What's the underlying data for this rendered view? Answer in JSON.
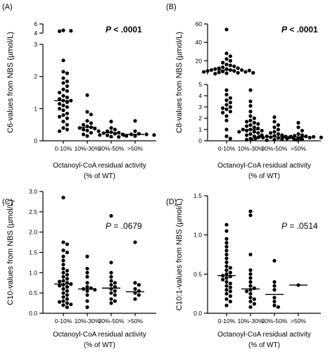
{
  "chart_data": [
    {
      "type": "scatter",
      "panel_label": "(A)",
      "ylabel": "C6-values from NBS (µmol/L)",
      "xlabel_lines": [
        "Octanoyl-CoA residual activity",
        "(% of WT)"
      ],
      "categories": [
        "0-10%",
        "10%-30%",
        "30%-50%",
        ">50%"
      ],
      "p_value": {
        "prefix": "P",
        "text": " < .0001",
        "bold": true
      },
      "y_segments": [
        {
          "range": [
            0,
            3
          ],
          "ticks": [
            0,
            1,
            2,
            3
          ],
          "tick_labels": [
            "0",
            "1",
            "2",
            "3"
          ]
        },
        {
          "range": [
            4,
            6
          ],
          "ticks": [
            4,
            6
          ],
          "tick_labels": [
            "4",
            "6"
          ]
        }
      ],
      "medians": [
        1.25,
        0.42,
        0.25,
        0.2
      ],
      "series": [
        {
          "category": "0-10%",
          "values": [
            4.6,
            4.5,
            4.4,
            2.5,
            2.15,
            2.1,
            1.95,
            1.85,
            1.8,
            1.7,
            1.6,
            1.55,
            1.5,
            1.4,
            1.35,
            1.3,
            1.25,
            1.25,
            1.2,
            1.15,
            1.1,
            1.05,
            1.0,
            0.95,
            0.85,
            0.8,
            0.75,
            0.7,
            0.6,
            0.5,
            0.4,
            0.35,
            0.3
          ]
        },
        {
          "category": "10%-30%",
          "values": [
            1.42,
            0.9,
            0.82,
            0.62,
            0.55,
            0.5,
            0.45,
            0.42,
            0.4,
            0.38,
            0.35,
            0.32,
            0.3,
            0.25,
            0.2,
            0.15
          ]
        },
        {
          "category": "30%-50%",
          "values": [
            0.6,
            0.4,
            0.35,
            0.3,
            0.27,
            0.25,
            0.24,
            0.22,
            0.2,
            0.18,
            0.17,
            0.15,
            0.13,
            0.12
          ]
        },
        {
          "category": ">50%",
          "values": [
            0.62,
            0.3,
            0.22,
            0.2,
            0.2,
            0.18,
            0.18,
            0.15
          ]
        }
      ]
    },
    {
      "type": "scatter",
      "panel_label": "(B)",
      "ylabel": "C8-values from NBS (µmol/L)",
      "xlabel_lines": [
        "Octanoyl-CoA residual activity",
        "(% of WT)"
      ],
      "categories": [
        "0-10%",
        "10%-30%",
        "30%-50%",
        ">50%"
      ],
      "p_value": {
        "prefix": "P",
        "text": " < .0001",
        "bold": true
      },
      "y_segments": [
        {
          "range": [
            0,
            5
          ],
          "ticks": [
            0,
            1,
            2,
            3,
            4,
            5
          ],
          "tick_labels": [
            "0",
            "1",
            "2",
            "3",
            "4",
            "5"
          ]
        },
        {
          "range": [
            5,
            60
          ],
          "ticks": [
            20,
            40,
            60
          ],
          "tick_labels": [
            "20",
            "40",
            "60"
          ]
        }
      ],
      "medians": [
        10,
        1.0,
        0.35,
        0.35
      ],
      "series": [
        {
          "category": "0-10%",
          "values": [
            54,
            28,
            25,
            22,
            20,
            18,
            16,
            15,
            14,
            13,
            12,
            12,
            11,
            11,
            10,
            10,
            10,
            9.5,
            9,
            9,
            8.5,
            8,
            8,
            7.5,
            7,
            7,
            6.5,
            6,
            4.5,
            4.1,
            3.8,
            3.6,
            3.4,
            3.2,
            3.0,
            2.9,
            2.8,
            2.6,
            2.5,
            2.2,
            1.8,
            1.0,
            0.4,
            0.2
          ]
        },
        {
          "category": "10%-30%",
          "values": [
            4.5,
            3.5,
            3.1,
            2.6,
            2.2,
            2.0,
            1.8,
            1.7,
            1.6,
            1.5,
            1.4,
            1.3,
            1.2,
            1.1,
            1.0,
            1.0,
            0.9,
            0.9,
            0.8,
            0.8,
            0.7,
            0.6,
            0.5,
            0.5,
            0.4,
            0.3,
            0.2,
            0.1
          ]
        },
        {
          "category": "30%-50%",
          "values": [
            2.1,
            1.7,
            1.4,
            1.2,
            1.0,
            0.8,
            0.7,
            0.6,
            0.5,
            0.45,
            0.4,
            0.38,
            0.35,
            0.32,
            0.3,
            0.28,
            0.25,
            0.22,
            0.2,
            0.18,
            0.15,
            0.12,
            0.1,
            0.08,
            0.05
          ]
        },
        {
          "category": ">50%",
          "values": [
            1.6,
            1.2,
            0.9,
            0.6,
            0.5,
            0.45,
            0.4,
            0.38,
            0.35,
            0.33,
            0.3,
            0.28,
            0.25,
            0.2,
            0.15,
            0.1
          ]
        }
      ]
    },
    {
      "type": "scatter",
      "panel_label": "(C)",
      "ylabel": "C10-values from NBS (µmol/L)",
      "xlabel_lines": [
        "Octanoyl-CoA residual activity",
        "(% of WT)"
      ],
      "categories": [
        "0-10%",
        "10%-30%",
        "30%-50%",
        ">50%"
      ],
      "p_value": {
        "prefix": "P",
        "text": " = .0679",
        "bold": false
      },
      "y_segments": [
        {
          "range": [
            0,
            3
          ],
          "ticks": [
            0,
            0.5,
            1.0,
            1.5,
            2.0,
            2.5,
            3.0
          ],
          "tick_labels": [
            "0.0",
            "0.5",
            "1.0",
            "1.5",
            "2.0",
            "2.5",
            "3.0"
          ]
        }
      ],
      "medians": [
        0.72,
        0.6,
        0.62,
        0.53
      ],
      "series": [
        {
          "category": "0-10%",
          "values": [
            2.85,
            1.75,
            1.7,
            1.55,
            1.5,
            1.4,
            1.3,
            1.2,
            1.1,
            1.05,
            1.0,
            0.95,
            0.9,
            0.85,
            0.8,
            0.78,
            0.75,
            0.72,
            0.7,
            0.68,
            0.65,
            0.6,
            0.55,
            0.5,
            0.45,
            0.4,
            0.35,
            0.3,
            0.28,
            0.25,
            0.22,
            0.2,
            0.15
          ]
        },
        {
          "category": "10%-30%",
          "values": [
            1.4,
            1.1,
            1.0,
            0.9,
            0.75,
            0.65,
            0.62,
            0.6,
            0.58,
            0.55,
            0.45,
            0.3,
            0.15
          ]
        },
        {
          "category": "30%-50%",
          "values": [
            2.4,
            1.25,
            1.0,
            0.9,
            0.8,
            0.75,
            0.7,
            0.65,
            0.6,
            0.55,
            0.5,
            0.45,
            0.35,
            0.3,
            0.25
          ]
        },
        {
          "category": ">50%",
          "values": [
            1.75,
            0.75,
            0.7,
            0.6,
            0.55,
            0.5,
            0.45,
            0.35
          ]
        }
      ]
    },
    {
      "type": "scatter",
      "panel_label": "(D)",
      "ylabel": "C10:1-values from NBS (µmol/L)",
      "xlabel_lines": [
        "Octanoyl-CoA residual activity",
        "(% of WT)"
      ],
      "categories": [
        "0-10%",
        "10%-30%",
        "30%-50%",
        ">50%"
      ],
      "p_value": {
        "prefix": "P",
        "text": " = .0514",
        "bold": false
      },
      "y_segments": [
        {
          "range": [
            0,
            1.5
          ],
          "ticks": [
            0,
            0.5,
            1.0,
            1.5
          ],
          "tick_labels": [
            "0.0",
            "0.5",
            "1.0",
            "1.5"
          ]
        }
      ],
      "medians": [
        0.48,
        0.31,
        0.24,
        0.36
      ],
      "series": [
        {
          "category": "0-10%",
          "values": [
            1.13,
            1.05,
            0.95,
            0.9,
            0.85,
            0.8,
            0.75,
            0.7,
            0.65,
            0.6,
            0.58,
            0.55,
            0.52,
            0.5,
            0.48,
            0.47,
            0.45,
            0.43,
            0.4,
            0.38,
            0.35,
            0.33,
            0.3,
            0.28,
            0.25,
            0.22,
            0.18,
            0.15,
            0.1
          ]
        },
        {
          "category": "10%-30%",
          "values": [
            1.3,
            1.25,
            0.75,
            0.55,
            0.5,
            0.45,
            0.4,
            0.35,
            0.32,
            0.3,
            0.28,
            0.25,
            0.2,
            0.18,
            0.15,
            0.12,
            0.08
          ]
        },
        {
          "category": "30%-50%",
          "values": [
            0.67,
            0.4,
            0.35,
            0.3,
            0.2,
            0.15,
            0.1,
            0.08
          ]
        },
        {
          "category": ">50%",
          "values": [
            0.36
          ]
        }
      ]
    }
  ]
}
